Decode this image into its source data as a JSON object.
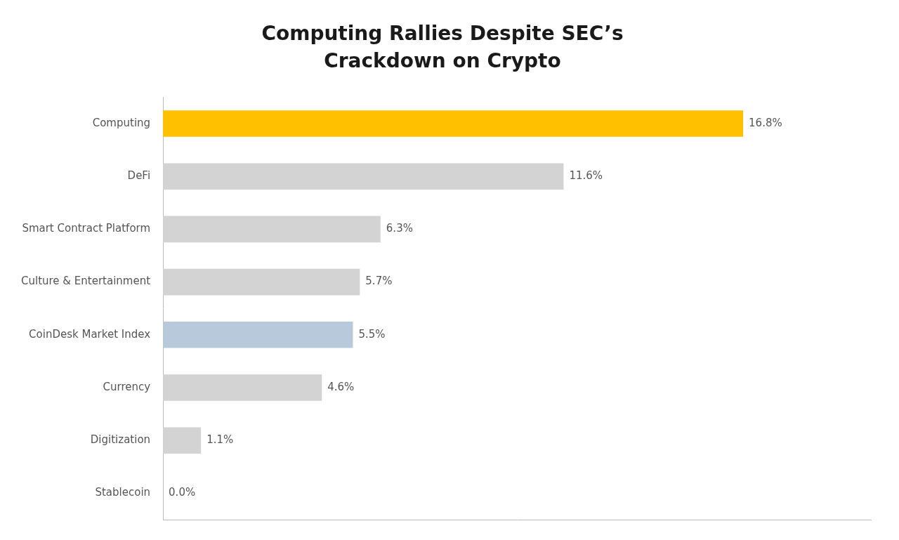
{
  "chart_data": {
    "type": "bar",
    "orientation": "horizontal",
    "title": "Computing Rallies Despite SEC’s\nCrackdown on Crypto",
    "categories": [
      "Stablecoin",
      "Digitization",
      "Currency",
      "CoinDesk Market Index",
      "Culture & Entertainment",
      "Smart Contract Platform",
      "DeFi",
      "Computing"
    ],
    "values": [
      0.0,
      1.1,
      4.6,
      5.5,
      5.7,
      6.3,
      11.6,
      16.8
    ],
    "value_labels": [
      "0.0%",
      "1.1%",
      "4.6%",
      "5.5%",
      "5.7%",
      "6.3%",
      "11.6%",
      "16.8%"
    ],
    "colors": [
      "#d3d3d3",
      "#d3d3d3",
      "#d3d3d3",
      "#b8c9db",
      "#d3d3d3",
      "#d3d3d3",
      "#d3d3d3",
      "#FFC000"
    ],
    "xlim": [
      0,
      20.5
    ],
    "grid": false,
    "data_labels": true,
    "tick_labels": "y"
  }
}
